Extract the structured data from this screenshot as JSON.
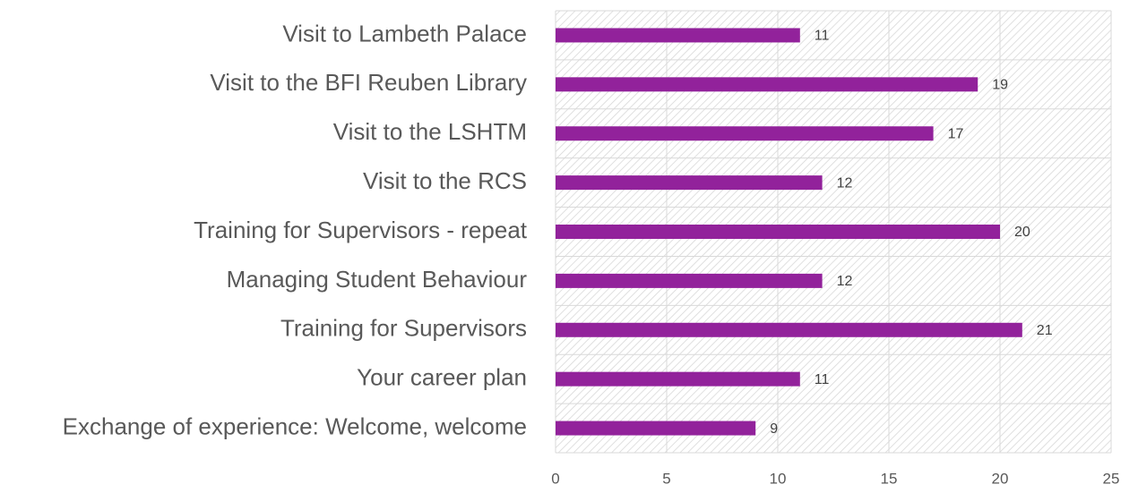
{
  "chart_data": {
    "type": "bar",
    "orientation": "horizontal",
    "categories": [
      "Visit to Lambeth Palace",
      "Visit to the BFI Reuben Library",
      "Visit to the LSHTM",
      "Visit to the RCS",
      "Training for Supervisors - repeat",
      "Managing Student Behaviour",
      "Training for Supervisors",
      "Your career plan",
      "Exchange of experience: Welcome, welcome"
    ],
    "values": [
      11,
      19,
      17,
      12,
      20,
      12,
      21,
      11,
      9
    ],
    "color": "#92229b",
    "xlim": [
      0,
      25
    ],
    "xticks": [
      0,
      5,
      10,
      15,
      20,
      25
    ],
    "grid": true
  }
}
